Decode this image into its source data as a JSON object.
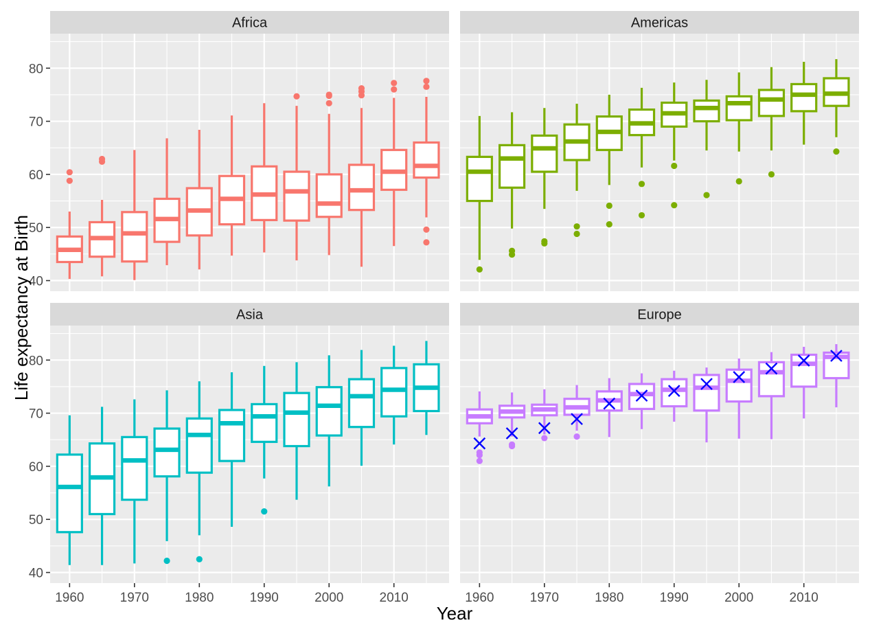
{
  "chart_data": {
    "type": "boxplot",
    "xlabel": "Year",
    "ylabel": "Life expectancy at Birth",
    "x_ticks": [
      1960,
      1970,
      1980,
      1990,
      2000,
      2010
    ],
    "y_ticks": [
      40,
      50,
      60,
      70,
      80
    ],
    "xlim": [
      1957,
      2018.5
    ],
    "ylim": [
      38,
      86.5
    ],
    "grid": true,
    "legend": "none",
    "years": [
      1960,
      1965,
      1970,
      1975,
      1980,
      1985,
      1990,
      1995,
      2000,
      2005,
      2010,
      2015
    ],
    "box_stats_order": [
      "lower_whisker",
      "q1",
      "median",
      "q3",
      "upper_whisker"
    ],
    "mean_marker_color": "#0000ff",
    "panels": [
      {
        "name": "Africa",
        "color": "#f8766d",
        "boxes": [
          [
            40.3,
            43.5,
            45.8,
            48.3,
            53
          ],
          [
            40.8,
            44.5,
            48,
            51,
            55.2
          ],
          [
            40.1,
            43.6,
            48.9,
            52.9,
            64.6
          ],
          [
            42.9,
            47.3,
            51.6,
            55.4,
            66.8
          ],
          [
            42.1,
            48.5,
            53.2,
            57.4,
            68.4
          ],
          [
            44.7,
            50.6,
            55.4,
            59.7,
            71.1
          ],
          [
            45.3,
            51.4,
            56.2,
            61.5,
            73.4
          ],
          [
            43.8,
            51.3,
            56.8,
            60.5,
            72.9
          ],
          [
            44.8,
            52,
            54.5,
            60,
            71.4
          ],
          [
            42.6,
            53.3,
            57,
            61.8,
            72.5
          ],
          [
            46.5,
            57.1,
            60.5,
            64.6,
            74.4
          ],
          [
            51.9,
            59.4,
            61.6,
            66,
            74.6
          ]
        ],
        "outliers": [
          [
            60.4,
            58.8
          ],
          [
            62.9,
            62.4
          ],
          [],
          [],
          [],
          [],
          [],
          [
            74.7
          ],
          [
            75,
            73.4,
            74.8
          ],
          [
            76.2,
            75.6,
            74.9
          ],
          [
            77.2,
            76
          ],
          [
            77.6,
            76.5,
            49.6,
            47.2
          ]
        ]
      },
      {
        "name": "Americas",
        "color": "#7cae00",
        "boxes": [
          [
            43.9,
            55,
            60.5,
            63.3,
            71
          ],
          [
            49.8,
            57.5,
            63,
            65.5,
            71.7
          ],
          [
            53.5,
            60.5,
            64.9,
            67.3,
            72.5
          ],
          [
            56.9,
            62.7,
            66.2,
            69.4,
            73.3
          ],
          [
            58,
            64.6,
            68,
            70.9,
            75
          ],
          [
            61.3,
            67.4,
            69.6,
            72.2,
            76.3
          ],
          [
            62.6,
            69,
            71.5,
            73.5,
            77.3
          ],
          [
            64.5,
            70,
            72.5,
            73.9,
            77.8
          ],
          [
            64.3,
            70.2,
            73.4,
            74.7,
            79.2
          ],
          [
            64.5,
            71,
            74.1,
            75.9,
            80.2
          ],
          [
            65.6,
            71.9,
            75,
            77,
            81.2
          ],
          [
            67,
            72.9,
            75.2,
            78.1,
            81.7
          ]
        ],
        "outliers": [
          [
            42.1
          ],
          [
            45.6,
            44.9
          ],
          [
            47.4,
            47
          ],
          [
            50.2,
            48.8
          ],
          [
            54.1,
            50.6
          ],
          [
            58.2,
            52.3
          ],
          [
            61.6,
            54.2
          ],
          [
            56.1
          ],
          [
            58.7
          ],
          [
            60
          ],
          [],
          [
            64.3
          ]
        ]
      },
      {
        "name": "Asia",
        "color": "#00bfc4",
        "boxes": [
          [
            41.4,
            47.6,
            56.1,
            62.2,
            69.6
          ],
          [
            41.4,
            51,
            57.9,
            64.3,
            71.2
          ],
          [
            41.7,
            53.7,
            61.1,
            65.5,
            72.6
          ],
          [
            45.9,
            58.1,
            63.1,
            67.1,
            74.3
          ],
          [
            47,
            58.8,
            65.9,
            69,
            76
          ],
          [
            48.6,
            61,
            68.1,
            70.6,
            77.7
          ],
          [
            57.7,
            64.6,
            69.4,
            71.7,
            78.9
          ],
          [
            53.7,
            63.8,
            70.1,
            73.8,
            79.6
          ],
          [
            56.2,
            65.8,
            71.4,
            74.9,
            80.9
          ],
          [
            60.1,
            67.4,
            73.2,
            76.4,
            81.9
          ],
          [
            64.1,
            69.4,
            74.4,
            78.5,
            82.7
          ],
          [
            65.9,
            70.4,
            74.8,
            79.2,
            83.6
          ]
        ],
        "outliers": [
          [],
          [],
          [],
          [
            42.2
          ],
          [
            42.5
          ],
          [],
          [
            51.5
          ],
          [],
          [],
          [],
          [],
          []
        ]
      },
      {
        "name": "Europe",
        "color": "#c77cff",
        "boxes": [
          [
            65.6,
            68.1,
            69.4,
            70.7,
            74.1
          ],
          [
            65.6,
            69.2,
            70.3,
            71.4,
            73.9
          ],
          [
            66,
            69.6,
            70.7,
            71.6,
            74.5
          ],
          [
            66.7,
            69.7,
            71.1,
            72.7,
            75.3
          ],
          [
            65.5,
            70.5,
            72.4,
            74.1,
            76.6
          ],
          [
            67,
            70.8,
            73.6,
            75.5,
            77.5
          ],
          [
            68.4,
            71.3,
            74.4,
            76.4,
            78
          ],
          [
            64.5,
            70.5,
            74.8,
            77.2,
            78.6
          ],
          [
            65.2,
            72.2,
            76.1,
            78.2,
            80.3
          ],
          [
            65.1,
            73.2,
            77.7,
            79.6,
            81.5
          ],
          [
            69,
            75,
            79.3,
            81,
            82.5
          ],
          [
            71.1,
            76.6,
            80.6,
            81.4,
            83
          ]
        ],
        "outliers": [
          [
            62.6,
            62.1,
            61
          ],
          [
            64.1,
            63.8
          ],
          [
            65.3
          ],
          [
            65.6
          ],
          [],
          [],
          [],
          [],
          [],
          [],
          [],
          []
        ],
        "means": [
          64.3,
          66.2,
          67.2,
          68.9,
          71.8,
          73.3,
          74.2,
          75.5,
          76.8,
          78.4,
          79.9,
          80.8
        ]
      }
    ]
  }
}
